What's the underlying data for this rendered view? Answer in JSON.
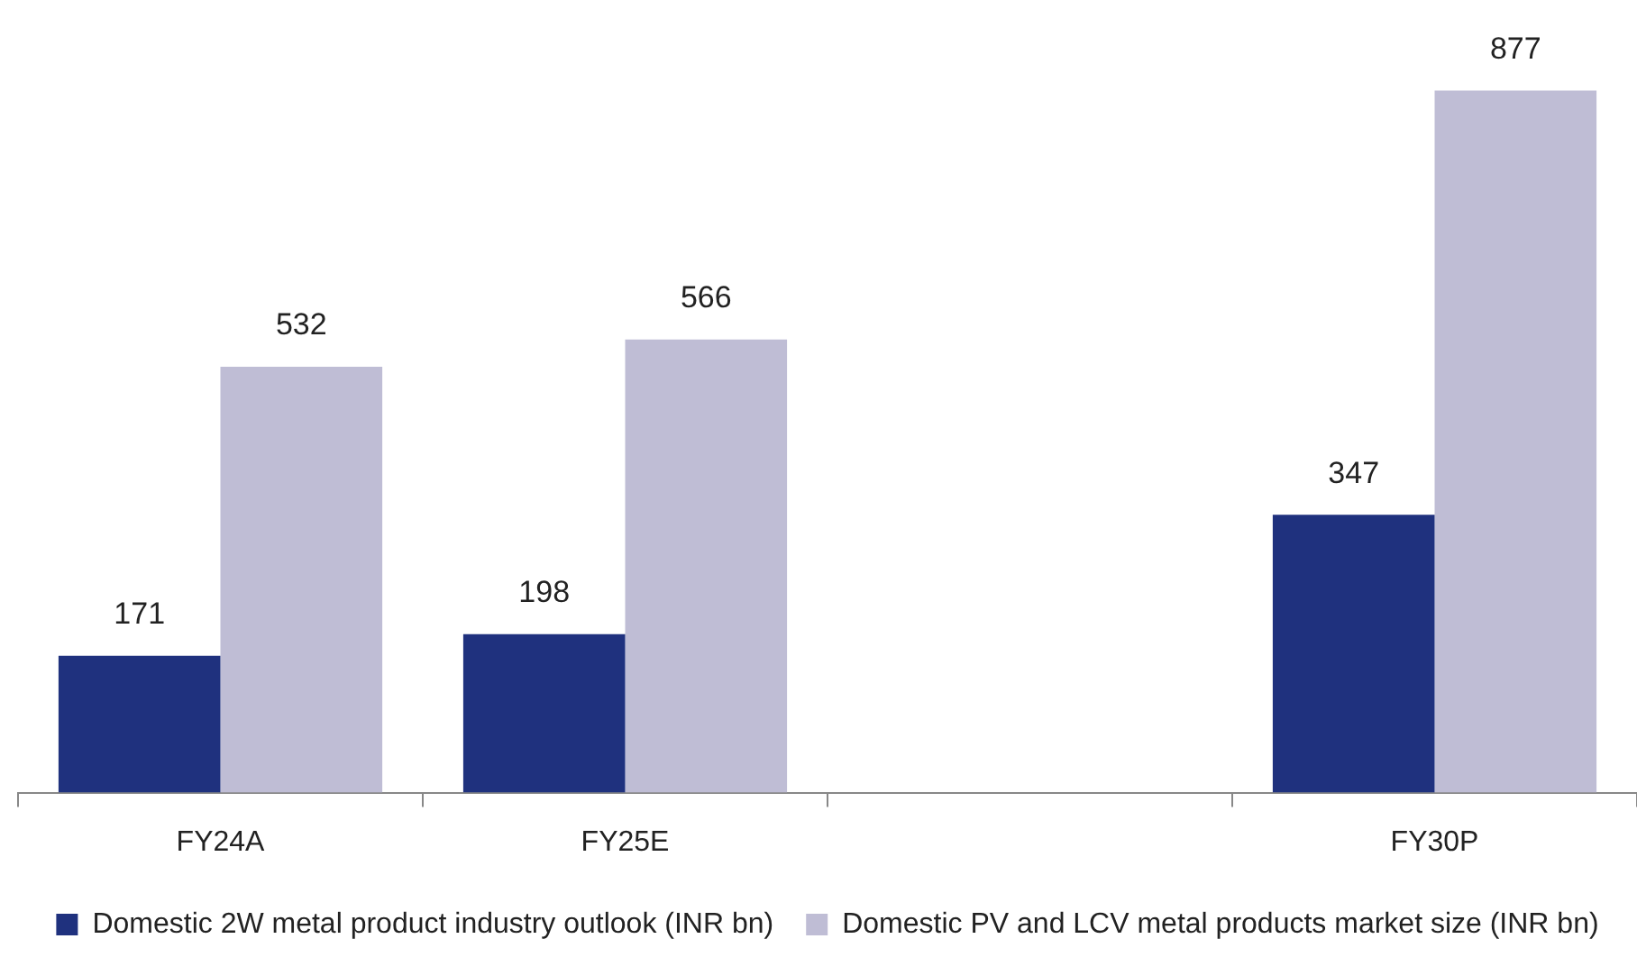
{
  "chart_data": {
    "type": "bar",
    "categories": [
      "FY24A",
      "FY25E",
      null,
      "FY30P"
    ],
    "series": [
      {
        "name": "Domestic 2W metal product industry outlook (INR bn)",
        "color": "#1f317e",
        "values": [
          171,
          198,
          null,
          347
        ]
      },
      {
        "name": "Domestic PV and LCV metal products market size (INR bn)",
        "color": "#bfbdd5",
        "values": [
          532,
          566,
          null,
          877
        ]
      }
    ],
    "data_labels": true,
    "grid": false,
    "legend": "bottom",
    "tick_labels": "x"
  }
}
